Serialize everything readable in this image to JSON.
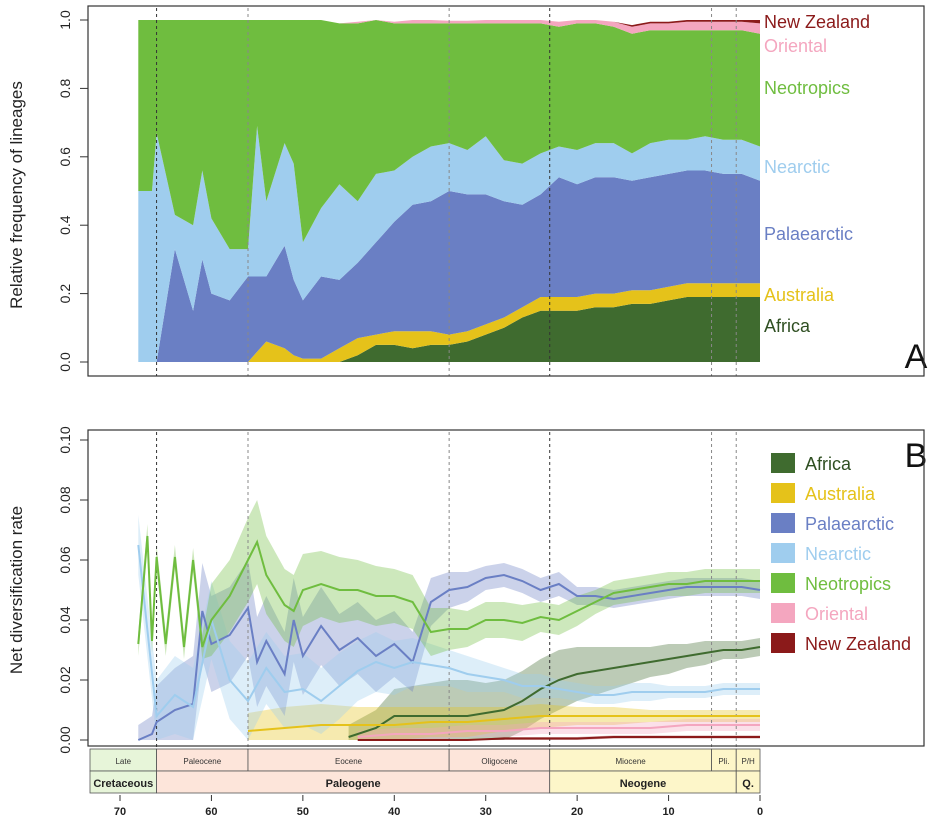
{
  "chart_data": [
    {
      "panel": "A",
      "type": "area",
      "stacked": true,
      "ylabel": "Relative frequency of lineages",
      "xlabel": "",
      "xlim": [
        70,
        0
      ],
      "ylim": [
        0.0,
        1.0
      ],
      "y_ticks": [
        "0.0",
        "0.2",
        "0.4",
        "0.6",
        "0.8",
        "1.0"
      ],
      "x": [
        68,
        66.5,
        66,
        64,
        62,
        61,
        60,
        58,
        56,
        55,
        54,
        52,
        51,
        50,
        48,
        46,
        44,
        42,
        40,
        38,
        36,
        34,
        32,
        30,
        28,
        26,
        24,
        22,
        20,
        18,
        16,
        14,
        12,
        10,
        8,
        6,
        4,
        2,
        0
      ],
      "series": [
        {
          "name": "Africa",
          "color": "#3f6b2f",
          "values": [
            0,
            0,
            0,
            0,
            0,
            0,
            0,
            0,
            0,
            0,
            0,
            0,
            0,
            0,
            0,
            0,
            0.02,
            0.05,
            0.05,
            0.04,
            0.05,
            0.05,
            0.06,
            0.08,
            0.1,
            0.13,
            0.15,
            0.15,
            0.15,
            0.16,
            0.16,
            0.17,
            0.17,
            0.18,
            0.19,
            0.19,
            0.19,
            0.19,
            0.19
          ]
        },
        {
          "name": "Australia",
          "color": "#e5c21a",
          "values": [
            0,
            0,
            0,
            0,
            0,
            0,
            0,
            0,
            0,
            0.03,
            0.06,
            0.04,
            0.02,
            0.01,
            0.01,
            0.04,
            0.05,
            0.03,
            0.04,
            0.05,
            0.04,
            0.03,
            0.03,
            0.03,
            0.03,
            0.03,
            0.04,
            0.04,
            0.04,
            0.04,
            0.04,
            0.04,
            0.04,
            0.04,
            0.04,
            0.04,
            0.04,
            0.04,
            0.04
          ]
        },
        {
          "name": "Palaearctic",
          "color": "#6a7fc4",
          "values": [
            0,
            0,
            0,
            0.33,
            0.15,
            0.3,
            0.2,
            0.18,
            0.25,
            0.22,
            0.19,
            0.3,
            0.22,
            0.17,
            0.24,
            0.2,
            0.22,
            0.27,
            0.32,
            0.37,
            0.38,
            0.42,
            0.4,
            0.38,
            0.34,
            0.3,
            0.3,
            0.35,
            0.33,
            0.34,
            0.34,
            0.32,
            0.33,
            0.33,
            0.33,
            0.33,
            0.32,
            0.32,
            0.3
          ]
        },
        {
          "name": "Nearctic",
          "color": "#9fcdee",
          "values": [
            0.5,
            0.5,
            0.67,
            0.1,
            0.25,
            0.26,
            0.22,
            0.15,
            0.08,
            0.44,
            0.22,
            0.3,
            0.34,
            0.17,
            0.2,
            0.28,
            0.18,
            0.2,
            0.15,
            0.14,
            0.16,
            0.14,
            0.13,
            0.17,
            0.12,
            0.12,
            0.12,
            0.09,
            0.1,
            0.1,
            0.1,
            0.08,
            0.1,
            0.1,
            0.09,
            0.1,
            0.1,
            0.1,
            0.1
          ]
        },
        {
          "name": "Neotropics",
          "color": "#6fbd3f",
          "values": [
            0.5,
            0.5,
            0.33,
            0.57,
            0.6,
            0.44,
            0.58,
            0.67,
            0.67,
            0.31,
            0.53,
            0.36,
            0.42,
            0.65,
            0.55,
            0.47,
            0.52,
            0.45,
            0.43,
            0.39,
            0.36,
            0.35,
            0.37,
            0.33,
            0.4,
            0.41,
            0.38,
            0.35,
            0.37,
            0.35,
            0.34,
            0.35,
            0.33,
            0.32,
            0.32,
            0.31,
            0.32,
            0.32,
            0.33
          ]
        },
        {
          "name": "Oriental",
          "color": "#f4a6bf",
          "values": [
            0,
            0,
            0,
            0,
            0,
            0,
            0,
            0,
            0,
            0,
            0,
            0,
            0,
            0,
            0,
            0,
            0.005,
            0.005,
            0.005,
            0.01,
            0.01,
            0.008,
            0.008,
            0.01,
            0.01,
            0.01,
            0.01,
            0.015,
            0.015,
            0.015,
            0.015,
            0.02,
            0.02,
            0.02,
            0.025,
            0.025,
            0.025,
            0.025,
            0.03
          ]
        },
        {
          "name": "New Zealand",
          "color": "#8b1a1a",
          "values": [
            0,
            0,
            0,
            0,
            0,
            0,
            0,
            0,
            0,
            0,
            0,
            0,
            0,
            0,
            0,
            0,
            0,
            0,
            0,
            0,
            0,
            0,
            0,
            0,
            0,
            0,
            0,
            0,
            0,
            0,
            0,
            0.005,
            0.005,
            0.005,
            0.01,
            0.01,
            0.01,
            0.01,
            0.01
          ]
        }
      ]
    },
    {
      "panel": "B",
      "type": "line",
      "ylabel": "Net diversification rate",
      "xlabel": "",
      "xlim": [
        70,
        0
      ],
      "ylim": [
        0.0,
        0.1
      ],
      "y_ticks": [
        "0.00",
        "0.02",
        "0.04",
        "0.06",
        "0.08",
        "0.10"
      ],
      "x_ticks": [
        "70",
        "60",
        "50",
        "40",
        "30",
        "20",
        "10",
        "0"
      ],
      "x_tick_values": [
        70,
        60,
        50,
        40,
        30,
        20,
        10,
        0
      ],
      "series": [
        {
          "name": "Africa",
          "color": "#3f6b2f",
          "x": [
            45,
            42,
            40,
            38,
            36,
            34,
            32,
            30,
            28,
            26,
            24,
            22,
            20,
            18,
            16,
            14,
            12,
            10,
            8,
            6,
            4,
            2,
            0
          ],
          "values": [
            0.001,
            0.004,
            0.008,
            0.008,
            0.008,
            0.008,
            0.008,
            0.009,
            0.01,
            0.013,
            0.017,
            0.02,
            0.022,
            0.023,
            0.024,
            0.025,
            0.026,
            0.027,
            0.028,
            0.029,
            0.03,
            0.03,
            0.031
          ],
          "band": [
            0.004,
            0.006,
            0.009,
            0.01,
            0.011,
            0.012,
            0.012,
            0.01,
            0.01,
            0.01,
            0.01,
            0.01,
            0.009,
            0.008,
            0.007,
            0.006,
            0.005,
            0.005,
            0.004,
            0.004,
            0.003,
            0.003,
            0.003
          ]
        },
        {
          "name": "Australia",
          "color": "#e5c21a",
          "x": [
            56,
            52,
            48,
            44,
            40,
            36,
            32,
            28,
            24,
            20,
            16,
            12,
            8,
            4,
            0
          ],
          "values": [
            0.003,
            0.004,
            0.005,
            0.005,
            0.005,
            0.006,
            0.006,
            0.007,
            0.008,
            0.008,
            0.008,
            0.008,
            0.008,
            0.008,
            0.008
          ],
          "band": [
            0.006,
            0.007,
            0.007,
            0.006,
            0.006,
            0.005,
            0.005,
            0.004,
            0.004,
            0.003,
            0.003,
            0.002,
            0.002,
            0.002,
            0.002
          ]
        },
        {
          "name": "Palaearctic",
          "color": "#6a7fc4",
          "x": [
            68,
            66.5,
            66,
            64,
            62,
            61,
            60,
            58,
            56,
            55,
            54,
            52,
            51,
            50,
            48,
            46,
            44,
            42,
            40,
            38,
            36,
            34,
            32,
            30,
            28,
            26,
            24,
            22,
            20,
            18,
            16,
            14,
            12,
            10,
            8,
            6,
            4,
            2,
            0
          ],
          "values": [
            0.0,
            0.002,
            0.006,
            0.01,
            0.012,
            0.043,
            0.032,
            0.035,
            0.044,
            0.026,
            0.033,
            0.022,
            0.04,
            0.028,
            0.038,
            0.03,
            0.034,
            0.028,
            0.032,
            0.026,
            0.046,
            0.05,
            0.051,
            0.054,
            0.055,
            0.053,
            0.05,
            0.052,
            0.048,
            0.048,
            0.047,
            0.048,
            0.049,
            0.05,
            0.051,
            0.051,
            0.051,
            0.051,
            0.05
          ],
          "band": [
            0.005,
            0.006,
            0.012,
            0.014,
            0.016,
            0.016,
            0.016,
            0.016,
            0.016,
            0.015,
            0.015,
            0.014,
            0.014,
            0.013,
            0.013,
            0.012,
            0.012,
            0.012,
            0.011,
            0.01,
            0.008,
            0.006,
            0.005,
            0.004,
            0.004,
            0.004,
            0.004,
            0.004,
            0.003,
            0.003,
            0.003,
            0.003,
            0.003,
            0.003,
            0.003,
            0.003,
            0.003,
            0.003,
            0.003
          ]
        },
        {
          "name": "Nearctic",
          "color": "#9fcdee",
          "x": [
            68,
            66,
            64,
            62,
            60,
            58,
            56,
            54,
            52,
            50,
            48,
            46,
            44,
            42,
            40,
            38,
            36,
            34,
            32,
            30,
            28,
            26,
            24,
            22,
            20,
            18,
            16,
            14,
            12,
            10,
            8,
            6,
            4,
            2,
            0
          ],
          "values": [
            0.065,
            0.008,
            0.015,
            0.011,
            0.04,
            0.02,
            0.013,
            0.024,
            0.016,
            0.017,
            0.013,
            0.018,
            0.023,
            0.026,
            0.024,
            0.026,
            0.025,
            0.024,
            0.022,
            0.021,
            0.02,
            0.018,
            0.018,
            0.017,
            0.016,
            0.015,
            0.015,
            0.016,
            0.016,
            0.016,
            0.016,
            0.016,
            0.017,
            0.017,
            0.017
          ],
          "band": [
            0.01,
            0.012,
            0.013,
            0.013,
            0.013,
            0.013,
            0.013,
            0.012,
            0.012,
            0.012,
            0.011,
            0.011,
            0.01,
            0.01,
            0.009,
            0.008,
            0.007,
            0.006,
            0.006,
            0.005,
            0.004,
            0.004,
            0.004,
            0.003,
            0.003,
            0.003,
            0.003,
            0.003,
            0.003,
            0.002,
            0.002,
            0.002,
            0.002,
            0.002,
            0.002
          ]
        },
        {
          "name": "Neotropics",
          "color": "#6fbd3f",
          "x": [
            68,
            67,
            66.5,
            66,
            65,
            64,
            63,
            62,
            61,
            60,
            58,
            56,
            55,
            54,
            52,
            51,
            50,
            48,
            46,
            44,
            42,
            40,
            38,
            36,
            34,
            32,
            30,
            28,
            26,
            24,
            22,
            20,
            18,
            16,
            14,
            12,
            10,
            8,
            6,
            4,
            2,
            0
          ],
          "values": [
            0.032,
            0.068,
            0.033,
            0.061,
            0.032,
            0.061,
            0.031,
            0.06,
            0.031,
            0.04,
            0.048,
            0.06,
            0.066,
            0.055,
            0.045,
            0.043,
            0.05,
            0.052,
            0.05,
            0.05,
            0.048,
            0.048,
            0.046,
            0.036,
            0.037,
            0.037,
            0.04,
            0.04,
            0.039,
            0.041,
            0.04,
            0.043,
            0.046,
            0.049,
            0.05,
            0.051,
            0.052,
            0.052,
            0.053,
            0.053,
            0.053,
            0.053
          ],
          "band": [
            0.004,
            0.004,
            0.004,
            0.004,
            0.004,
            0.004,
            0.004,
            0.004,
            0.004,
            0.012,
            0.012,
            0.014,
            0.014,
            0.013,
            0.012,
            0.012,
            0.012,
            0.011,
            0.011,
            0.01,
            0.01,
            0.009,
            0.009,
            0.008,
            0.007,
            0.006,
            0.006,
            0.006,
            0.006,
            0.005,
            0.005,
            0.005,
            0.004,
            0.004,
            0.004,
            0.004,
            0.004,
            0.004,
            0.004,
            0.004,
            0.004,
            0.004
          ]
        },
        {
          "name": "Oriental",
          "color": "#f4a6bf",
          "x": [
            44,
            40,
            36,
            32,
            28,
            24,
            20,
            16,
            12,
            8,
            4,
            0
          ],
          "values": [
            0.001,
            0.002,
            0.002,
            0.003,
            0.003,
            0.004,
            0.004,
            0.004,
            0.004,
            0.005,
            0.005,
            0.005
          ],
          "band": [
            0.002,
            0.002,
            0.002,
            0.002,
            0.002,
            0.002,
            0.002,
            0.002,
            0.002,
            0.002,
            0.002,
            0.002
          ]
        },
        {
          "name": "New Zealand",
          "color": "#8b1a1a",
          "x": [
            44,
            40,
            36,
            32,
            28,
            24,
            20,
            16,
            12,
            8,
            4,
            0
          ],
          "values": [
            0.0,
            0.0,
            0.0,
            0.0,
            0.0005,
            0.0005,
            0.0005,
            0.001,
            0.001,
            0.001,
            0.001,
            0.001
          ],
          "band": [
            0.0,
            0.0,
            0.0,
            0.0,
            0.0005,
            0.0005,
            0.0005,
            0.0005,
            0.0005,
            0.0005,
            0.0005,
            0.0005
          ]
        }
      ],
      "legend_position": "right"
    }
  ],
  "period_lines": [
    66,
    56,
    34,
    23,
    5.3,
    2.6
  ],
  "timescale": {
    "epochs": [
      {
        "label": "Late",
        "start": 72,
        "end": 66,
        "color": "#e7f5d9"
      },
      {
        "label": "Paleocene",
        "start": 66,
        "end": 56,
        "color": "#fde5da"
      },
      {
        "label": "Eocene",
        "start": 56,
        "end": 34,
        "color": "#fde5da"
      },
      {
        "label": "Oligocene",
        "start": 34,
        "end": 23,
        "color": "#fde5da"
      },
      {
        "label": "Miocene",
        "start": 23,
        "end": 5.3,
        "color": "#fdf6c9"
      },
      {
        "label": "Pli.",
        "start": 5.3,
        "end": 2.6,
        "color": "#fdf6c9"
      },
      {
        "label": "P/H",
        "start": 2.6,
        "end": 0,
        "color": "#fdf6c9"
      }
    ],
    "periods": [
      {
        "label": "Cretaceous",
        "start": 72,
        "end": 66,
        "color": "#e7f5d9"
      },
      {
        "label": "Paleogene",
        "start": 66,
        "end": 23,
        "color": "#fde5da"
      },
      {
        "label": "Neogene",
        "start": 23,
        "end": 2.6,
        "color": "#fdf6c9"
      },
      {
        "label": "Q.",
        "start": 2.6,
        "end": 0,
        "color": "#fdf6c9"
      }
    ]
  },
  "panel_labels": {
    "a": "A",
    "b": "B"
  }
}
